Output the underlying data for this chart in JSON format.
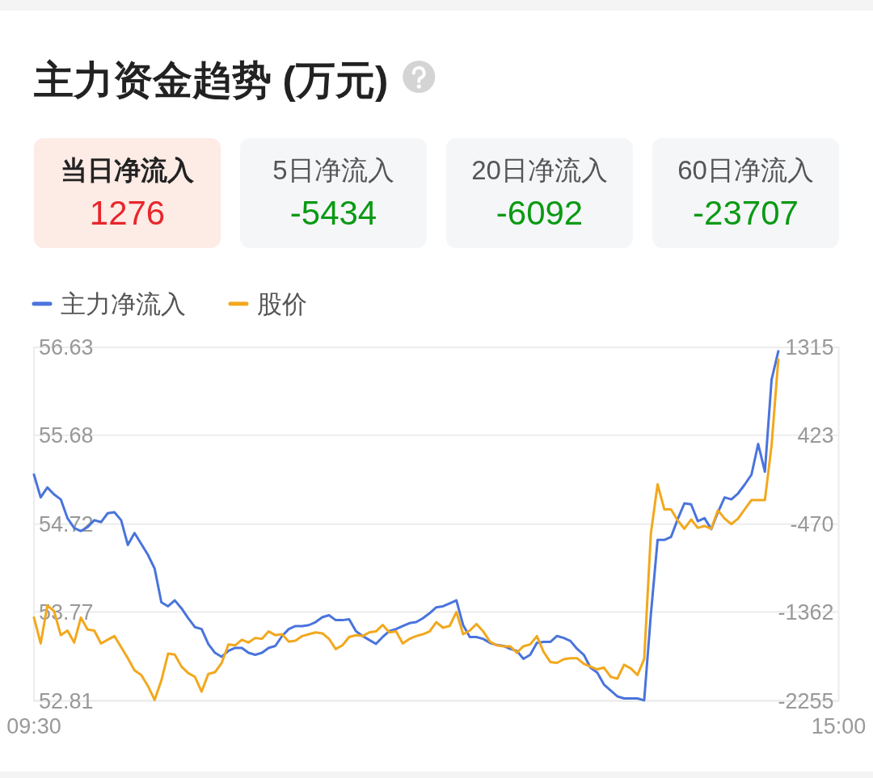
{
  "chart_data": [
    {
      "type": "other",
      "title": "主力资金趋势 (万元)",
      "categories": [
        "当日净流入",
        "5日净流入",
        "20日净流入",
        "60日净流入"
      ],
      "values": [
        1276,
        -5434,
        -6092,
        -23707
      ],
      "colors": [
        "#fdebe5",
        "#f5f6f8",
        "#f5f6f8",
        "#f5f6f8"
      ],
      "data_labels": true
    },
    {
      "type": "line",
      "categories": [
        "09:30",
        null,
        null,
        null,
        null,
        null,
        null,
        null,
        null,
        null,
        null,
        null,
        null,
        null,
        null,
        null,
        null,
        null,
        null,
        null,
        null,
        null,
        null,
        null,
        null,
        null,
        null,
        null,
        null,
        null,
        null,
        null,
        null,
        null,
        null,
        null,
        null,
        null,
        null,
        null,
        null,
        null,
        null,
        null,
        null,
        null,
        null,
        null,
        null,
        null,
        null,
        null,
        null,
        null,
        null,
        null,
        null,
        null,
        null,
        null,
        null,
        null,
        null,
        null,
        null,
        null,
        null,
        null,
        null,
        null,
        null,
        null,
        null,
        null,
        null,
        null,
        null,
        null,
        null,
        null,
        null,
        null,
        null,
        null,
        null,
        null,
        null,
        null,
        null,
        null,
        null,
        null,
        null,
        null,
        null,
        null,
        null,
        null,
        null,
        null,
        null,
        null,
        null,
        null,
        null,
        null,
        null,
        null,
        null,
        null,
        null,
        null,
        null,
        null,
        null,
        null,
        null,
        null,
        null,
        null,
        "15:00"
      ],
      "series": [
        {
          "name": "主力净流入",
          "color": "#4a74dc",
          "axis": "y2",
          "values": [
            30,
            -200,
            -100,
            -170,
            -220,
            -410,
            -510,
            -540,
            -500,
            -430,
            -450,
            -360,
            -350,
            -430,
            -680,
            -560,
            -670,
            -780,
            -920,
            -1260,
            -1300,
            -1240,
            -1320,
            -1420,
            -1510,
            -1530,
            -1680,
            -1770,
            -1810,
            -1750,
            -1720,
            -1720,
            -1770,
            -1790,
            -1770,
            -1720,
            -1700,
            -1600,
            -1530,
            -1500,
            -1500,
            -1490,
            -1460,
            -1410,
            -1390,
            -1440,
            -1440,
            -1430,
            -1550,
            -1600,
            -1640,
            -1680,
            -1610,
            -1550,
            -1530,
            -1500,
            -1470,
            -1460,
            -1420,
            -1370,
            -1310,
            -1300,
            -1270,
            -1240,
            -1490,
            -1610,
            -1610,
            -1630,
            -1670,
            -1690,
            -1700,
            -1730,
            -1750,
            -1830,
            -1790,
            -1670,
            -1660,
            -1660,
            -1600,
            -1620,
            -1650,
            -1730,
            -1790,
            -1920,
            -1970,
            -2090,
            -2150,
            -2210,
            -2230,
            -2230,
            -2230,
            -2250,
            -1380,
            -630,
            -630,
            -600,
            -420,
            -260,
            -270,
            -440,
            -410,
            -520,
            -350,
            -200,
            -220,
            -160,
            -70,
            30,
            340,
            60,
            990,
            1276,
            null,
            null,
            null,
            null,
            null,
            null,
            null,
            null,
            null
          ]
        },
        {
          "name": "股价",
          "color": "#f2a81d",
          "values": [
            53.71,
            53.43,
            53.84,
            53.78,
            53.52,
            53.57,
            53.44,
            53.71,
            53.58,
            53.57,
            53.43,
            53.47,
            53.51,
            53.39,
            53.27,
            53.14,
            53.09,
            52.97,
            52.82,
            53.03,
            53.32,
            53.31,
            53.18,
            53.11,
            53.07,
            52.91,
            53.1,
            53.12,
            53.22,
            53.42,
            53.41,
            53.47,
            53.44,
            53.49,
            53.48,
            53.56,
            53.52,
            53.53,
            53.45,
            53.46,
            53.51,
            53.53,
            53.55,
            53.54,
            53.48,
            53.37,
            53.41,
            53.5,
            53.52,
            53.51,
            53.55,
            53.56,
            53.63,
            53.55,
            53.56,
            53.43,
            53.48,
            53.51,
            53.53,
            53.56,
            53.66,
            53.6,
            53.62,
            53.77,
            53.53,
            53.57,
            53.64,
            53.56,
            53.45,
            53.41,
            53.4,
            53.4,
            53.33,
            53.4,
            53.42,
            53.51,
            53.34,
            53.23,
            53.22,
            53.26,
            53.27,
            53.27,
            53.21,
            53.18,
            53.15,
            53.17,
            53.07,
            53.05,
            53.2,
            53.16,
            53.09,
            53.26,
            54.62,
            55.15,
            54.88,
            54.88,
            54.76,
            54.67,
            54.77,
            54.68,
            54.7,
            54.67,
            54.87,
            54.78,
            54.72,
            54.78,
            54.88,
            54.98,
            54.98,
            54.98,
            55.57,
            56.5,
            null,
            null,
            null,
            null,
            null,
            null,
            null,
            null,
            null
          ]
        }
      ],
      "ylim": [
        52.81,
        56.63
      ],
      "yticks": [
        52.81,
        53.77,
        54.72,
        55.68,
        56.63
      ],
      "y2lim": [
        -2255,
        1315
      ],
      "y2ticks": [
        -2255,
        -1362,
        -470,
        423,
        1315
      ],
      "grid": "y",
      "legend": "top left"
    }
  ]
}
